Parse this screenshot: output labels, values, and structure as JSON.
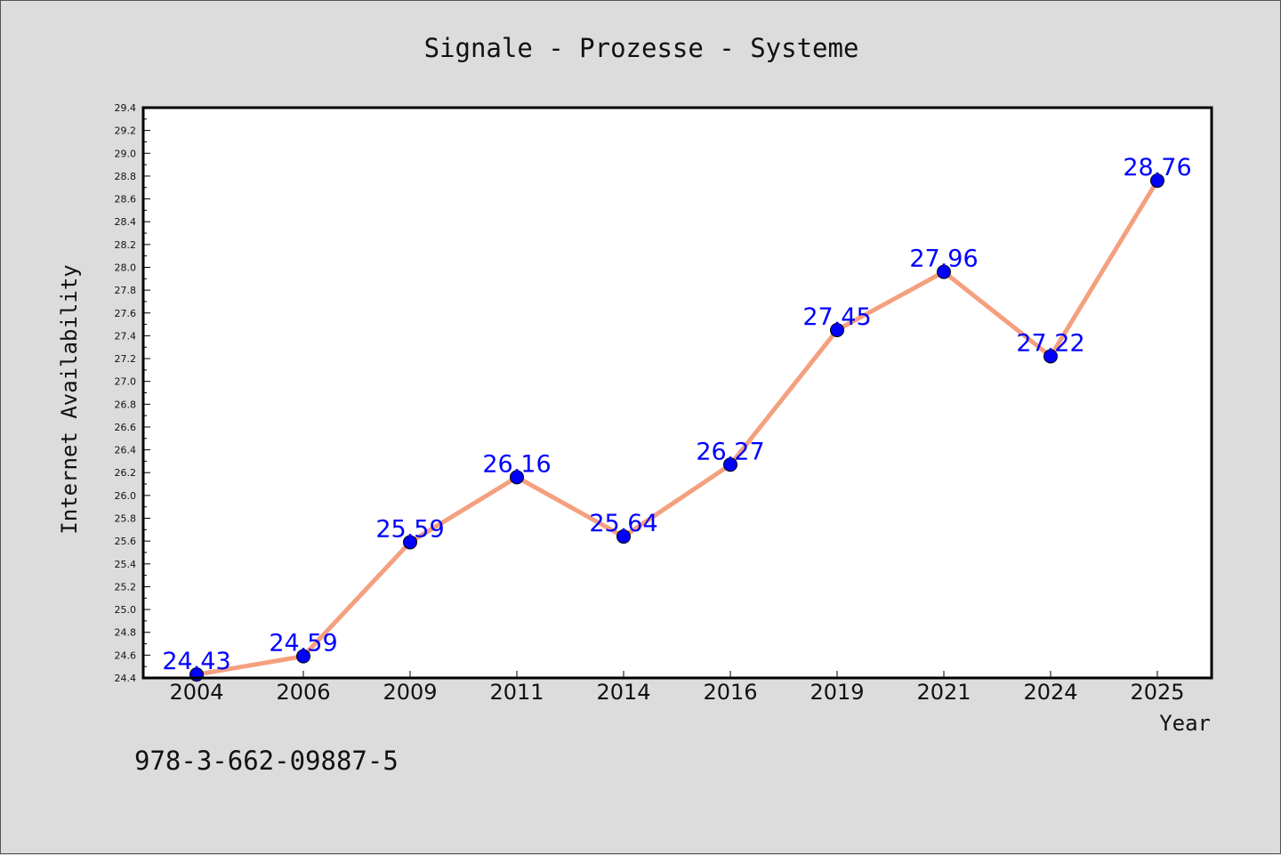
{
  "chart_data": {
    "type": "line",
    "title": "Signale - Prozesse - Systeme",
    "xlabel": "Year",
    "ylabel": "Internet Availability",
    "categories": [
      "2004",
      "2006",
      "2009",
      "2011",
      "2014",
      "2016",
      "2019",
      "2021",
      "2024",
      "2025"
    ],
    "series": [
      {
        "values": [
          24.43,
          24.59,
          25.59,
          26.16,
          25.64,
          26.27,
          27.45,
          27.96,
          27.22,
          28.76
        ],
        "data_labels": [
          "24.43",
          "24.59",
          "25.59",
          "26.16",
          "25.64",
          "26.27",
          "27.45",
          "27.96",
          "27.22",
          "28.76"
        ],
        "line_color": "#f4a07e",
        "marker_color": "#0000ff"
      }
    ],
    "ylim": [
      24.4,
      29.4
    ],
    "yticks": [
      "24.4",
      "24.6",
      "24.8",
      "25.0",
      "25.2",
      "25.4",
      "25.6",
      "25.8",
      "26.0",
      "26.2",
      "26.4",
      "26.6",
      "26.8",
      "27.0",
      "27.2",
      "27.4",
      "27.6",
      "27.8",
      "28.0",
      "28.2",
      "28.4",
      "28.6",
      "28.8",
      "29.0",
      "29.2",
      "29.4"
    ],
    "grid": false,
    "legend": "none",
    "background_color": "#dcdcdc",
    "plot_background": "#ffffff"
  },
  "footnote": "978-3-662-09887-5"
}
